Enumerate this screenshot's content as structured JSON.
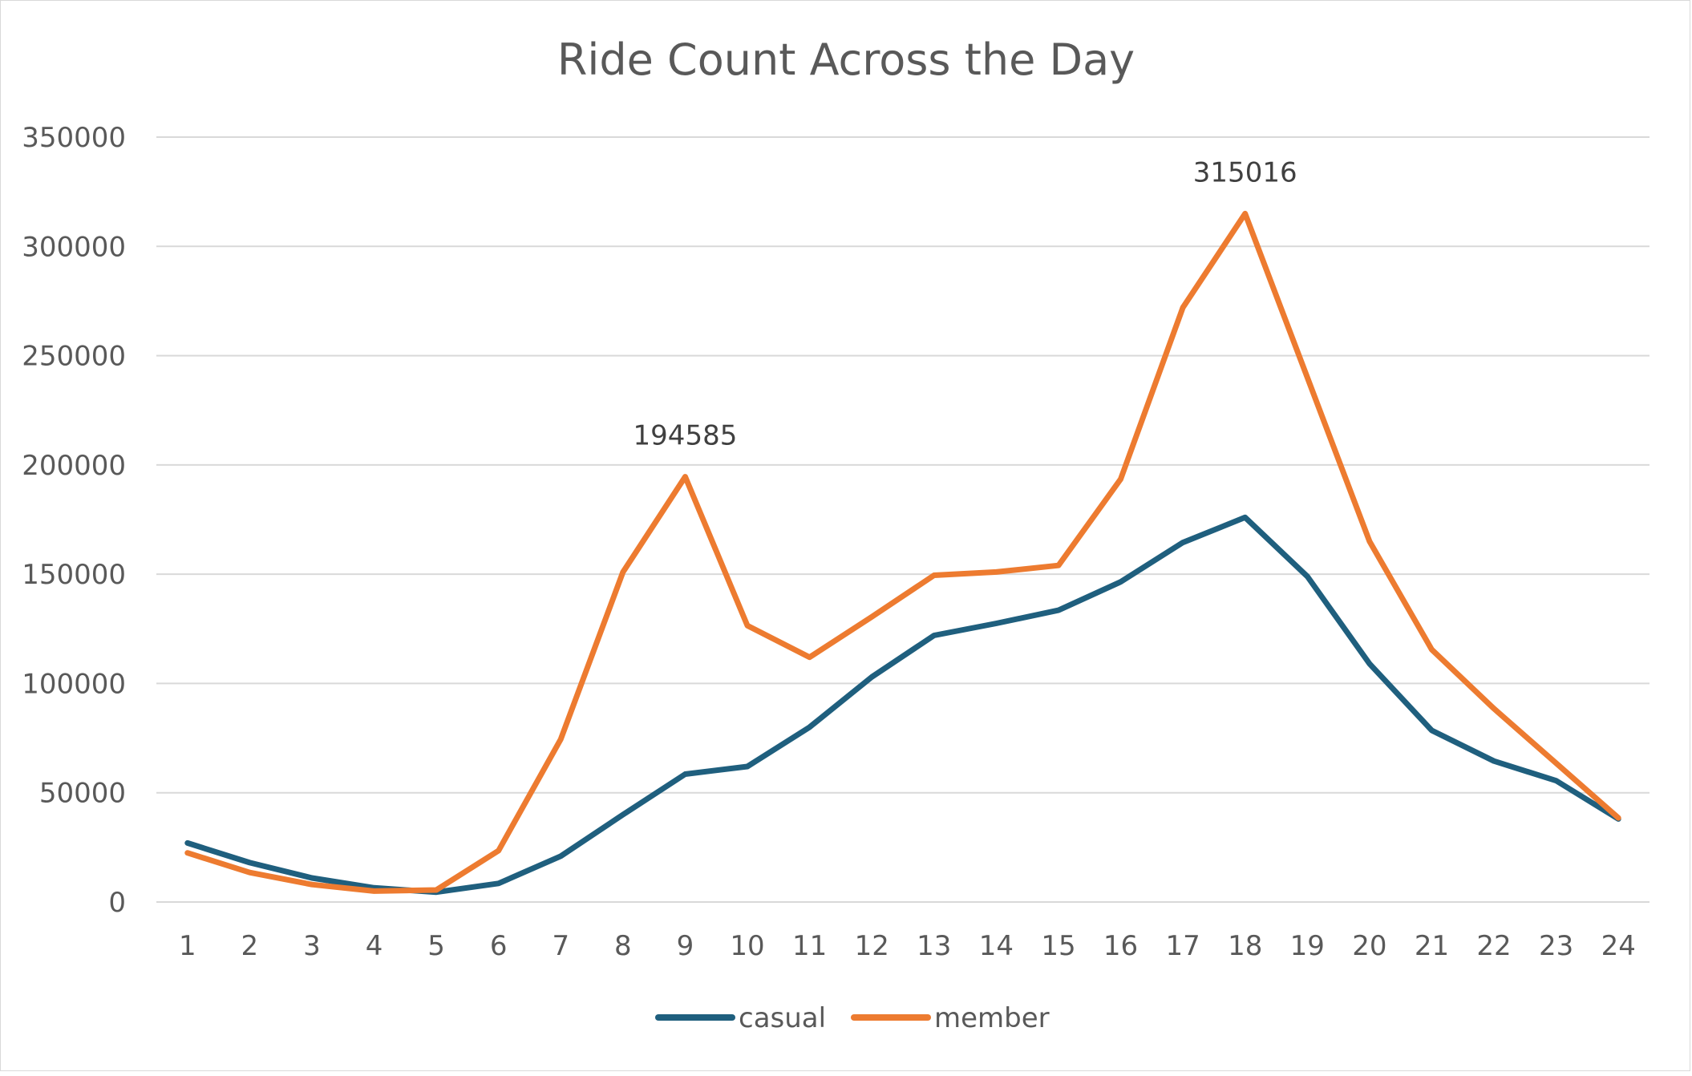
{
  "chart_data": {
    "type": "line",
    "title": "Ride Count Across the Day",
    "xlabel": "",
    "ylabel": "",
    "categories": [
      "1",
      "2",
      "3",
      "4",
      "5",
      "6",
      "7",
      "8",
      "9",
      "10",
      "11",
      "12",
      "13",
      "14",
      "15",
      "16",
      "17",
      "18",
      "19",
      "20",
      "21",
      "22",
      "23",
      "24"
    ],
    "ylim": [
      0,
      350000
    ],
    "yticks": [
      "0",
      "50000",
      "100000",
      "150000",
      "200000",
      "250000",
      "300000",
      "350000"
    ],
    "grid": true,
    "legend_position": "bottom",
    "series": [
      {
        "name": "casual",
        "color": "#1f5f7e",
        "values": [
          27000,
          18000,
          11000,
          6500,
          4500,
          8500,
          21000,
          40000,
          58500,
          62000,
          80000,
          103000,
          122000,
          127500,
          133500,
          146500,
          164500,
          176000,
          149000,
          109000,
          78500,
          64500,
          55500,
          38000
        ]
      },
      {
        "name": "member",
        "color": "#ed7b30",
        "values": [
          22500,
          13500,
          8000,
          5000,
          5500,
          23500,
          74500,
          151000,
          194585,
          126500,
          112000,
          130500,
          149500,
          151000,
          154000,
          193500,
          272000,
          315016,
          240000,
          165000,
          115500,
          88500,
          63500,
          38500
        ]
      }
    ],
    "annotations": [
      {
        "series": 1,
        "index": 8,
        "label": "194585"
      },
      {
        "series": 1,
        "index": 17,
        "label": "315016"
      }
    ]
  }
}
